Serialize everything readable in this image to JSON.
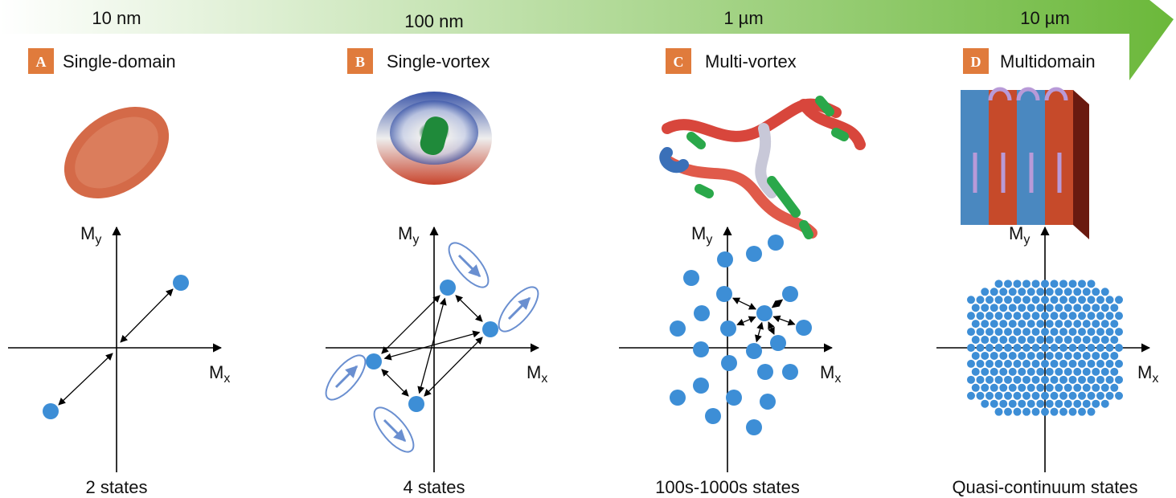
{
  "scale": {
    "labels": [
      "10 nm",
      "100 nm",
      "1 µm",
      "10 µm"
    ]
  },
  "panels": [
    {
      "letter": "A",
      "title": "Single-domain",
      "y_axis": {
        "symbol": "M",
        "subscript": "y"
      },
      "x_axis": {
        "symbol": "M",
        "subscript": "x"
      },
      "caption": "2 states"
    },
    {
      "letter": "B",
      "title": "Single-vortex",
      "y_axis": {
        "symbol": "M",
        "subscript": "y"
      },
      "x_axis": {
        "symbol": "M",
        "subscript": "x"
      },
      "caption": "4 states"
    },
    {
      "letter": "C",
      "title": "Multi-vortex",
      "y_axis": {
        "symbol": "M",
        "subscript": "y"
      },
      "x_axis": {
        "symbol": "M",
        "subscript": "x"
      },
      "caption": "100s-1000s states"
    },
    {
      "letter": "D",
      "title": "Multidomain",
      "y_axis": {
        "symbol": "M",
        "subscript": "y"
      },
      "x_axis": {
        "symbol": "M",
        "subscript": "x"
      },
      "caption": "Quasi-continuum states"
    }
  ]
}
